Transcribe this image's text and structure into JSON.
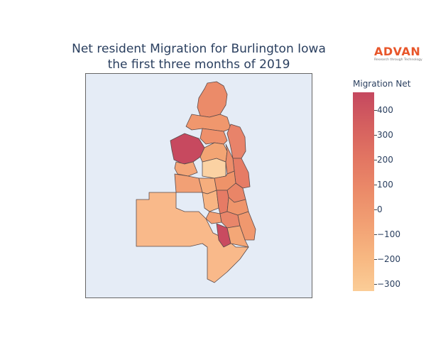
{
  "title_line1": "Net resident Migration for Burlington Iowa",
  "title_line2": "the first three months of 2019",
  "logo": {
    "word": "ADVAN",
    "tagline": "Research through Technology"
  },
  "colorbar": {
    "title": "Migration Net",
    "ticks": [
      "400",
      "300",
      "200",
      "100",
      "0",
      "−100",
      "−200",
      "−300"
    ],
    "tick_values": [
      400,
      300,
      200,
      100,
      0,
      -100,
      -200,
      -300
    ],
    "range": [
      -330,
      470
    ],
    "colors": [
      "#fbcd97",
      "#f7b781",
      "#f2a174",
      "#eb8b69",
      "#e27562",
      "#d5605f",
      "#c5485f"
    ]
  }
}
